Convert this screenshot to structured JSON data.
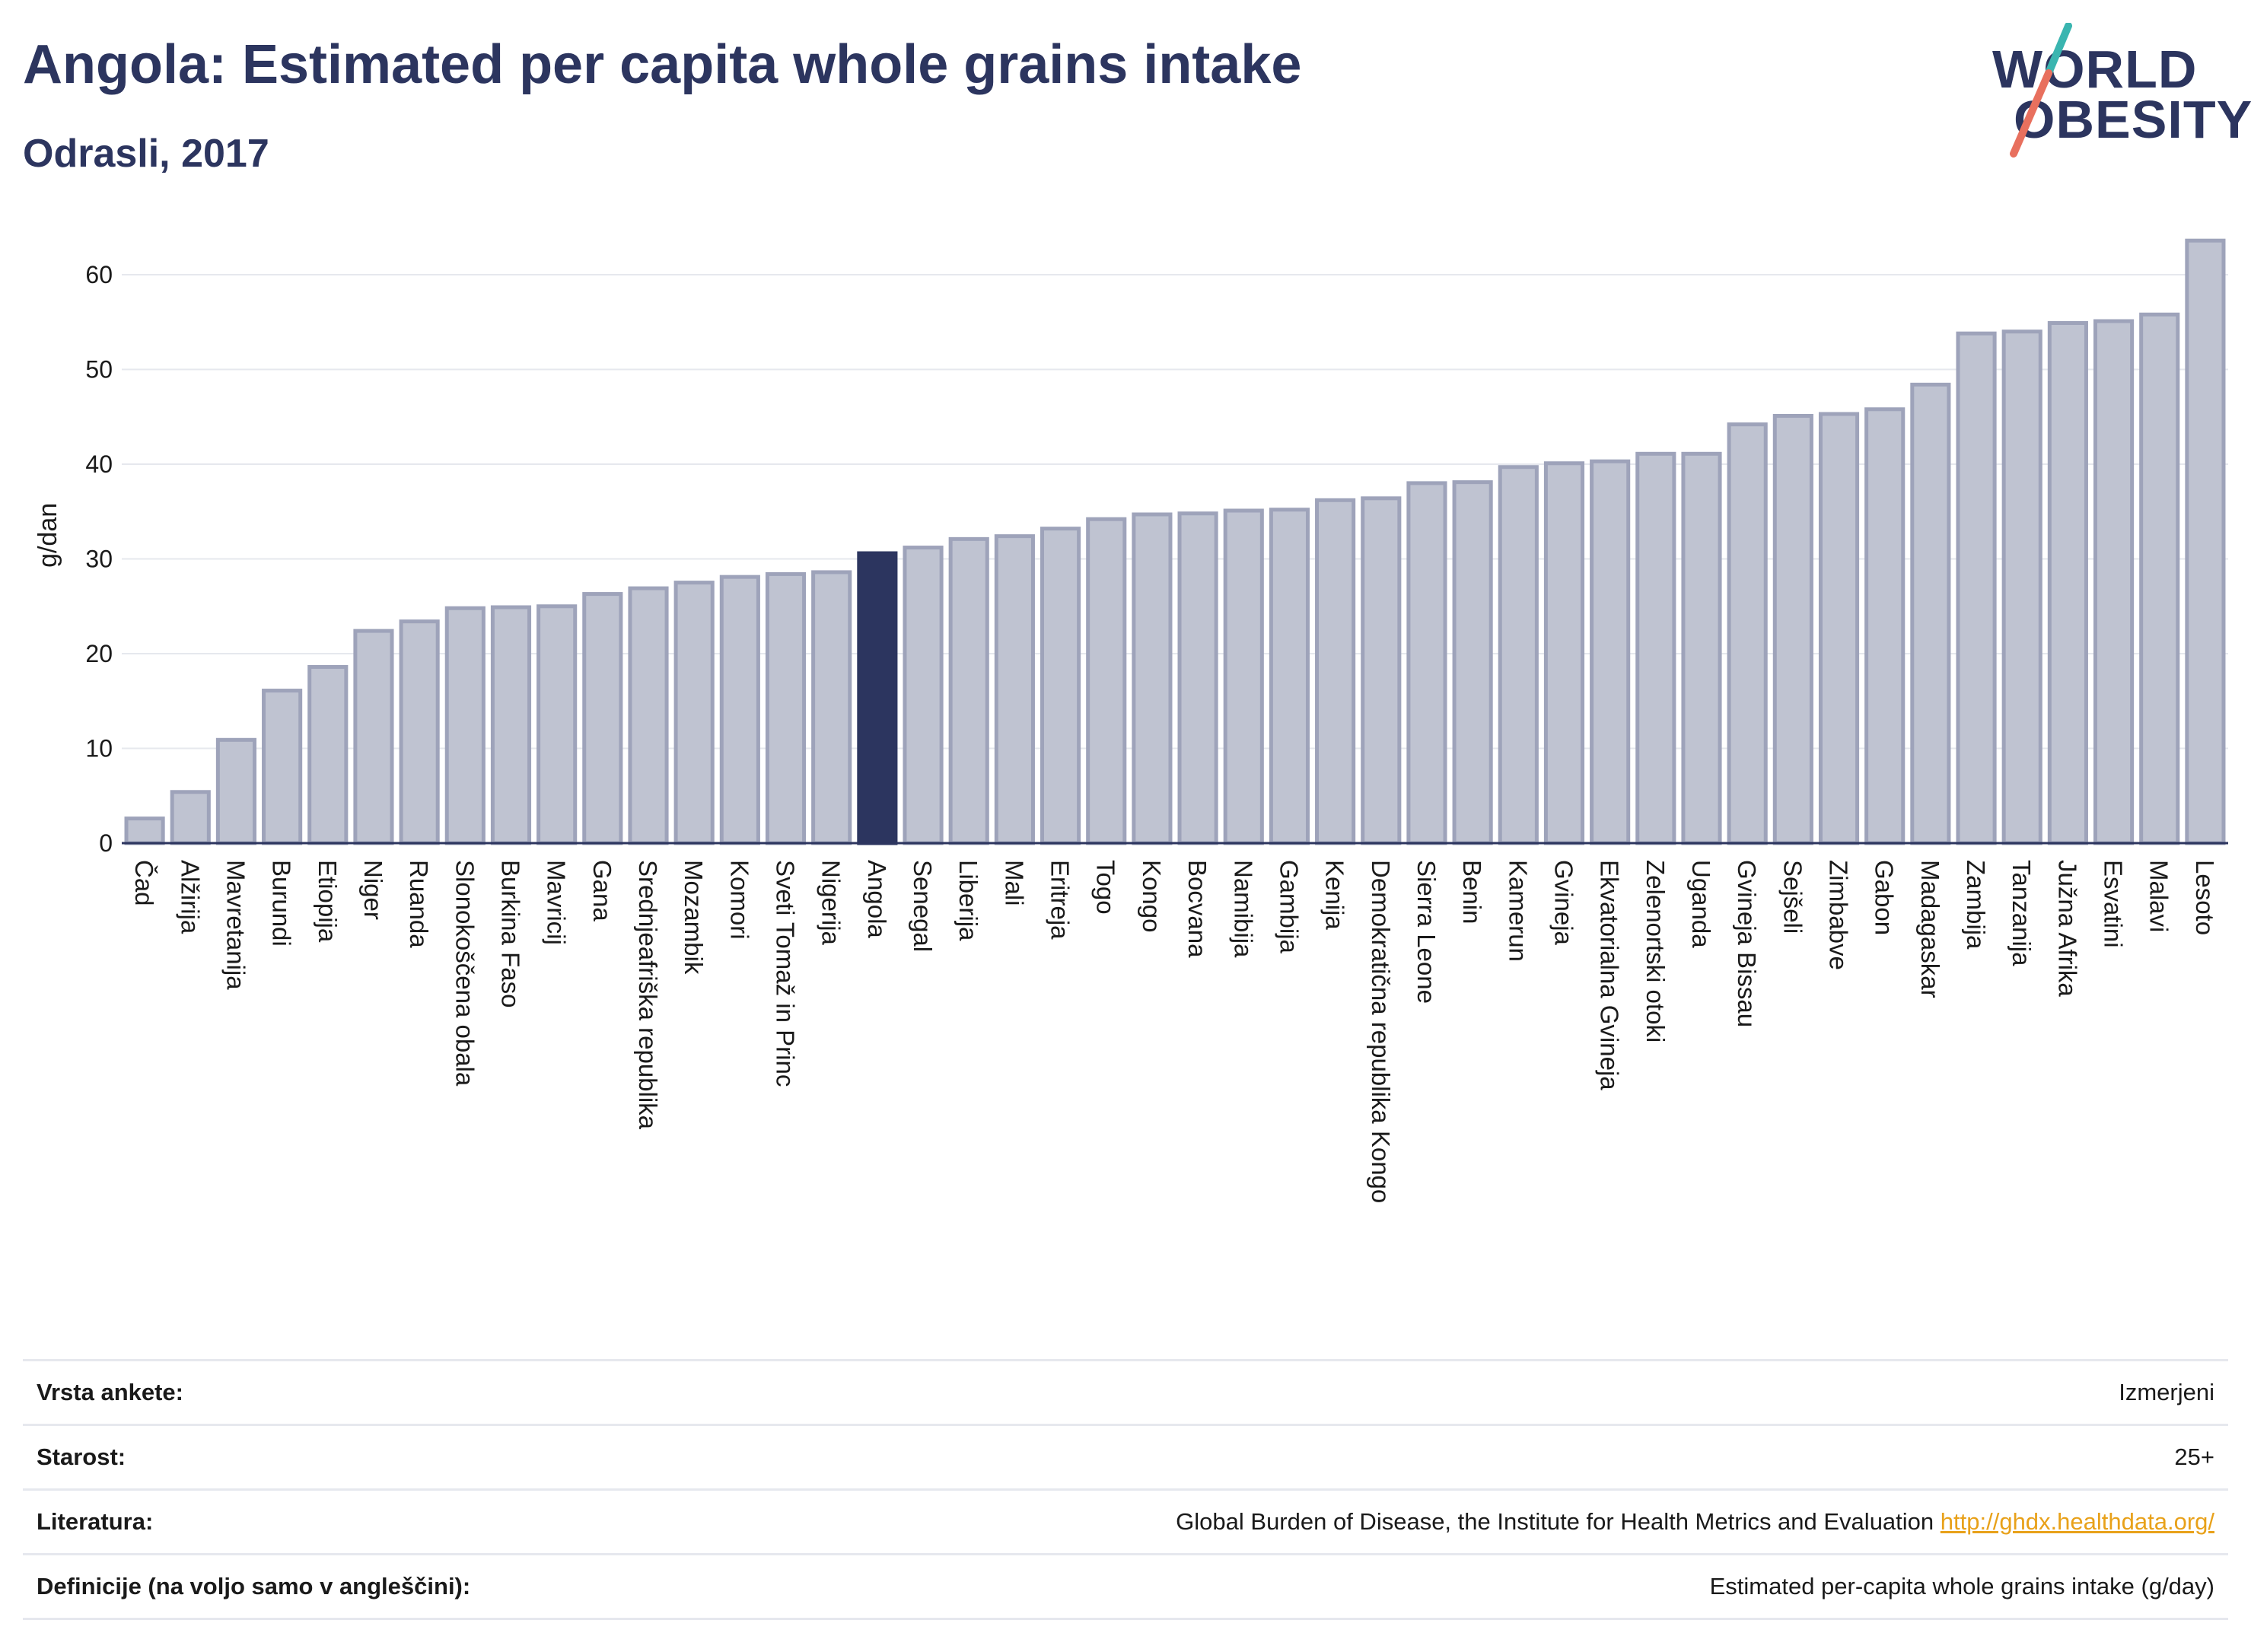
{
  "header": {
    "title": "Angola: Estimated per capita whole grains intake",
    "subtitle": "Odrasli, 2017"
  },
  "logo": {
    "line1": "WORLD",
    "line2": "OBESITY"
  },
  "colors": {
    "highlight": "#2c355f",
    "bar_fill": "#bfc3d1",
    "bar_stroke": "#9ea3ba",
    "grid": "#e6e8ee",
    "axis": "#2c355f",
    "logo_slash_top": "#3ab5b0",
    "logo_slash_bottom": "#e8705e"
  },
  "chart_data": {
    "type": "bar",
    "title": "Angola: Estimated per capita whole grains intake",
    "subtitle": "Odrasli, 2017",
    "ylabel": "g/dan",
    "ylim": [
      0,
      65
    ],
    "yticks": [
      0,
      10,
      20,
      30,
      40,
      50,
      60
    ],
    "grid": true,
    "highlight": "Angola",
    "categories": [
      "Čad",
      "Alžirija",
      "Mavretanija",
      "Burundi",
      "Etiopija",
      "Niger",
      "Ruanda",
      "Slonokoščena obala",
      "Burkina Faso",
      "Mavricij",
      "Gana",
      "Srednjeafriška republika",
      "Mozambik",
      "Komori",
      "Sveti Tomaž in Princ",
      "Nigerija",
      "Angola",
      "Senegal",
      "Liberija",
      "Mali",
      "Eritreja",
      "Togo",
      "Kongo",
      "Bocvana",
      "Namibija",
      "Gambija",
      "Kenija",
      "Demokratična republika Kongo",
      "Sierra Leone",
      "Benin",
      "Kamerun",
      "Gvineja",
      "Ekvatorialna Gvineja",
      "Zelenortski otoki",
      "Uganda",
      "Gvineja Bissau",
      "Sejšeli",
      "Zimbabve",
      "Gabon",
      "Madagaskar",
      "Zambija",
      "Tanzanija",
      "Južna Afrika",
      "Esvatini",
      "Malavi",
      "Lesoto"
    ],
    "values": [
      2.6,
      5.4,
      10.9,
      16.1,
      18.6,
      22.4,
      23.4,
      24.8,
      24.9,
      25.0,
      26.3,
      26.9,
      27.5,
      28.1,
      28.4,
      28.6,
      30.6,
      31.2,
      32.1,
      32.4,
      33.2,
      34.2,
      34.7,
      34.8,
      35.1,
      35.2,
      36.2,
      36.4,
      38.0,
      38.1,
      39.7,
      40.1,
      40.3,
      41.1,
      41.1,
      44.2,
      45.1,
      45.3,
      45.8,
      48.4,
      53.8,
      54.0,
      54.9,
      55.1,
      55.8,
      63.6
    ]
  },
  "info": {
    "rows": [
      {
        "label": "Vrsta ankete:",
        "value": "Izmerjeni"
      },
      {
        "label": "Starost:",
        "value": "25+"
      },
      {
        "label": "Literatura:",
        "value": "Global Burden of Disease, the Institute for Health Metrics and Evaluation",
        "link": "http://ghdx.healthdata.org/"
      },
      {
        "label": "Definicije (na voljo samo v angleščini):",
        "value": "Estimated per-capita whole grains intake (g/day)"
      }
    ]
  }
}
